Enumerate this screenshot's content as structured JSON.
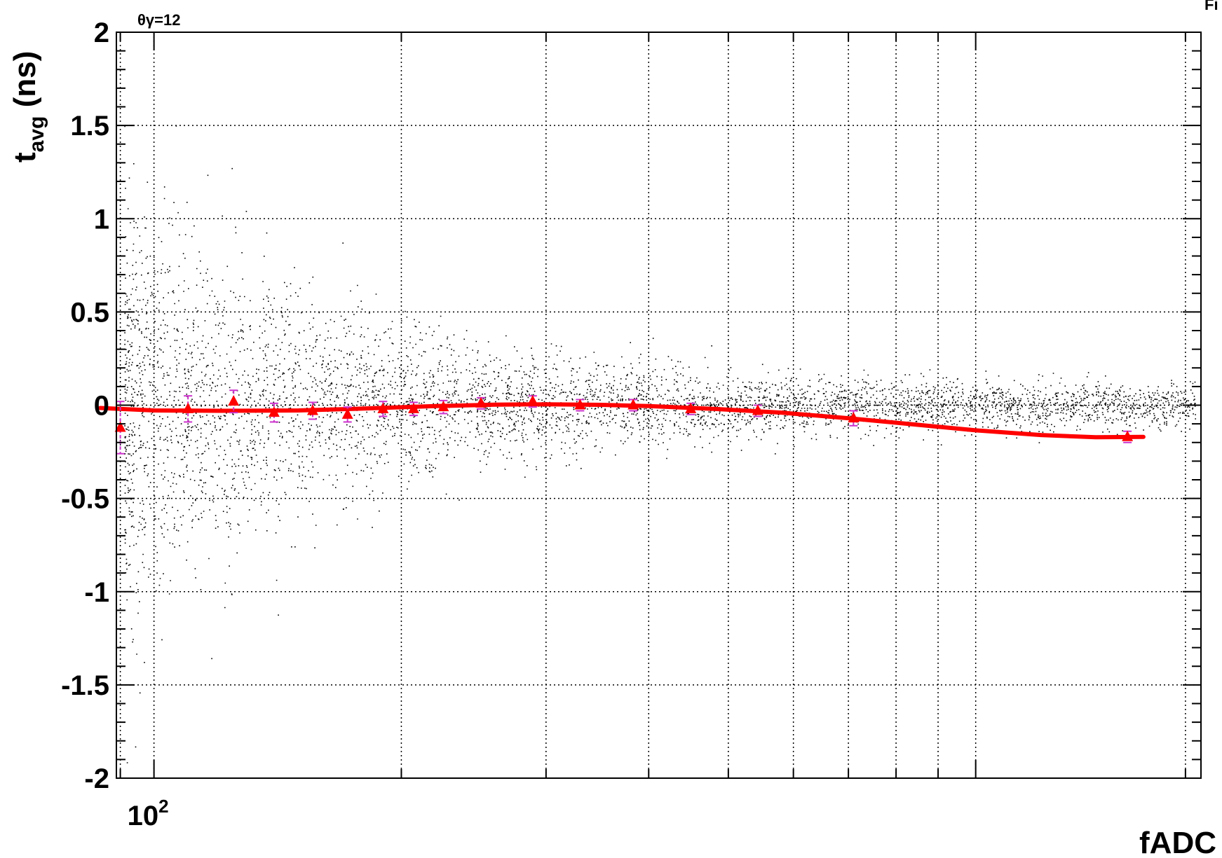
{
  "chart_data": {
    "type": "scatter",
    "annotation": "θγ=12",
    "corner_label": "Fi",
    "xlabel": "fADC",
    "ylabel": "t",
    "ylabel_sub": "avg",
    "ylabel_unit": " (ns)",
    "xscale": "log",
    "xlim": [
      90,
      1880
    ],
    "ylim": [
      -2,
      2
    ],
    "x_major_ticks": [
      {
        "value": 100,
        "base": "10",
        "exponent": "2"
      }
    ],
    "x_grid": [
      91,
      100,
      200,
      300,
      400,
      500,
      600,
      700,
      800,
      900,
      1000,
      1800
    ],
    "y_ticks": [
      {
        "value": 2,
        "label": "2"
      },
      {
        "value": 1.5,
        "label": "1.5"
      },
      {
        "value": 1,
        "label": "1"
      },
      {
        "value": 0.5,
        "label": "0.5"
      },
      {
        "value": 0,
        "label": "0"
      },
      {
        "value": -0.5,
        "label": "-0.5"
      },
      {
        "value": -1,
        "label": "-1"
      },
      {
        "value": -1.5,
        "label": "-1.5"
      },
      {
        "value": -2,
        "label": "-2"
      }
    ],
    "grid": true,
    "colors": {
      "points": "#ff0000",
      "fit": "#ff0000",
      "errors": "#cc33cc",
      "scatter": "#000000"
    },
    "scatter_cloud": {
      "description_only_for_rendering": false,
      "center_y": 0.0,
      "spread_at": [
        {
          "x": 95,
          "sd": 0.55
        },
        {
          "x": 150,
          "sd": 0.3
        },
        {
          "x": 250,
          "sd": 0.15
        },
        {
          "x": 500,
          "sd": 0.08
        },
        {
          "x": 1500,
          "sd": 0.06
        }
      ],
      "count": 5200
    },
    "series": [
      {
        "type": "points_with_errors",
        "points": [
          {
            "x": 91,
            "y": -0.12,
            "err": 0.14
          },
          {
            "x": 110,
            "y": -0.02,
            "err": 0.07
          },
          {
            "x": 125,
            "y": 0.02,
            "err": 0.06
          },
          {
            "x": 140,
            "y": -0.04,
            "err": 0.05
          },
          {
            "x": 156,
            "y": -0.03,
            "err": 0.045
          },
          {
            "x": 172,
            "y": -0.05,
            "err": 0.04
          },
          {
            "x": 190,
            "y": -0.02,
            "err": 0.04
          },
          {
            "x": 207,
            "y": -0.02,
            "err": 0.035
          },
          {
            "x": 225,
            "y": -0.01,
            "err": 0.035
          },
          {
            "x": 250,
            "y": 0.01,
            "err": 0.03
          },
          {
            "x": 289,
            "y": 0.02,
            "err": 0.03
          },
          {
            "x": 330,
            "y": 0.0,
            "err": 0.03
          },
          {
            "x": 383,
            "y": 0.0,
            "err": 0.03
          },
          {
            "x": 450,
            "y": -0.02,
            "err": 0.03
          },
          {
            "x": 543,
            "y": -0.03,
            "err": 0.03
          },
          {
            "x": 710,
            "y": -0.07,
            "err": 0.04
          },
          {
            "x": 1530,
            "y": -0.17,
            "err": 0.03
          }
        ]
      },
      {
        "type": "fit_line",
        "points": [
          {
            "x": 86,
            "y": -0.015
          },
          {
            "x": 100,
            "y": -0.028
          },
          {
            "x": 120,
            "y": -0.03
          },
          {
            "x": 150,
            "y": -0.028
          },
          {
            "x": 180,
            "y": -0.018
          },
          {
            "x": 220,
            "y": -0.005
          },
          {
            "x": 260,
            "y": 0.003
          },
          {
            "x": 300,
            "y": 0.005
          },
          {
            "x": 350,
            "y": 0.002
          },
          {
            "x": 400,
            "y": -0.005
          },
          {
            "x": 480,
            "y": -0.02
          },
          {
            "x": 580,
            "y": -0.04
          },
          {
            "x": 700,
            "y": -0.07
          },
          {
            "x": 850,
            "y": -0.105
          },
          {
            "x": 1000,
            "y": -0.135
          },
          {
            "x": 1200,
            "y": -0.16
          },
          {
            "x": 1400,
            "y": -0.172
          },
          {
            "x": 1600,
            "y": -0.17
          }
        ]
      }
    ]
  }
}
